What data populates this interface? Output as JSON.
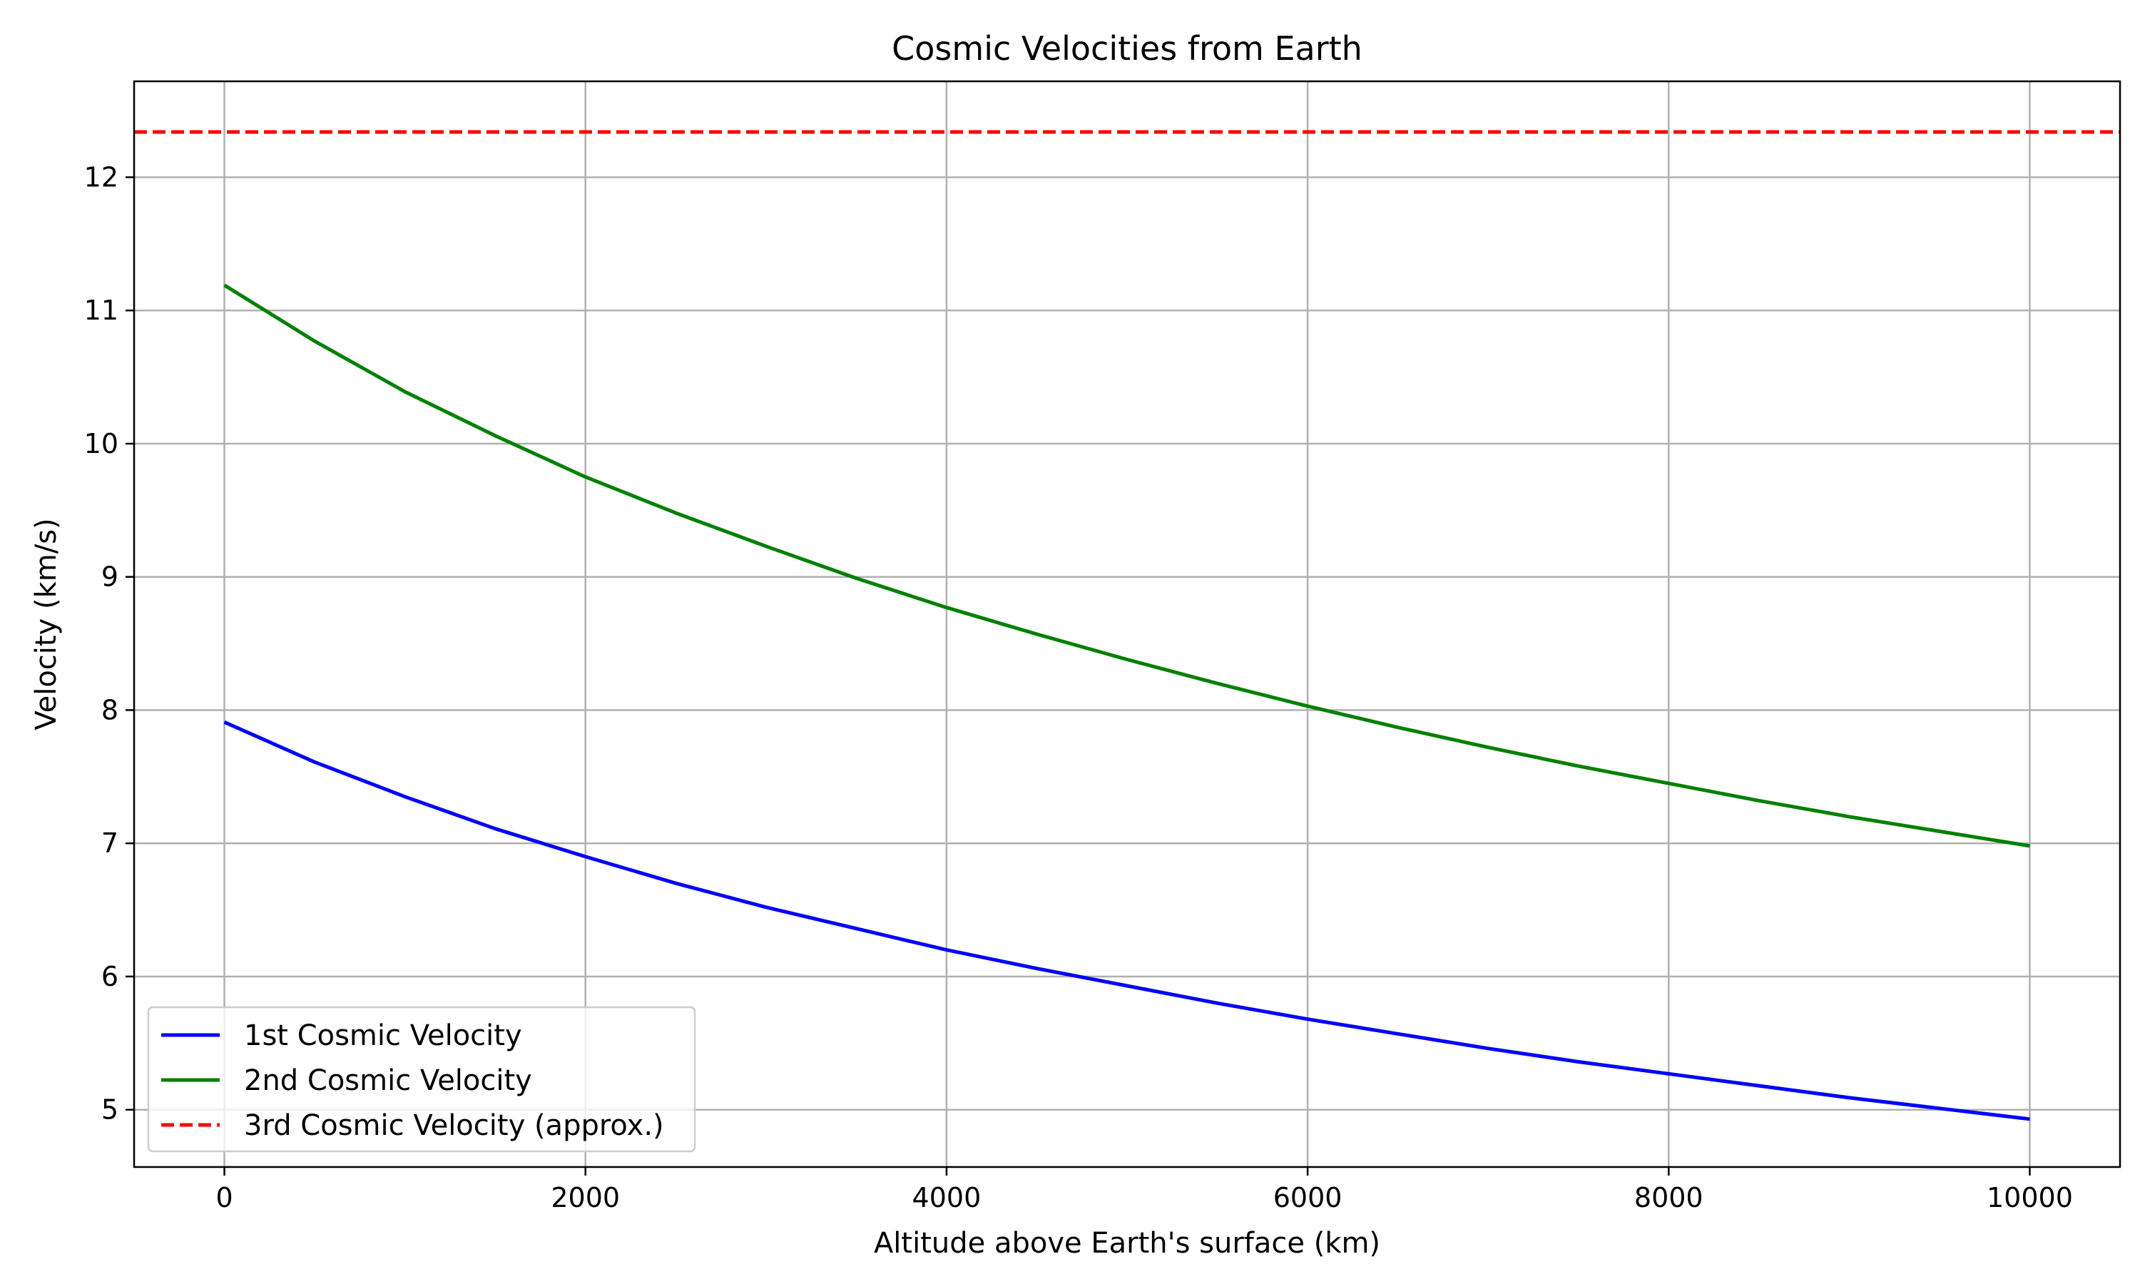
{
  "chart_data": {
    "type": "line",
    "title": "Cosmic Velocities from Earth",
    "xlabel": "Altitude above Earth's surface (km)",
    "ylabel": "Velocity (km/s)",
    "xlim": [
      -500,
      10500
    ],
    "ylim": [
      4.57,
      12.72
    ],
    "xticks": [
      0,
      2000,
      4000,
      6000,
      8000,
      10000
    ],
    "yticks": [
      5,
      6,
      7,
      8,
      9,
      10,
      11,
      12
    ],
    "grid": true,
    "legend_position": "bottom-left",
    "series": [
      {
        "name": "1st Cosmic Velocity",
        "color": "#0000ff",
        "style": "solid",
        "x": [
          0,
          500,
          1000,
          1500,
          2000,
          2500,
          3000,
          3500,
          4000,
          4500,
          5000,
          5500,
          6000,
          6500,
          7000,
          7500,
          8000,
          8500,
          9000,
          9500,
          10000
        ],
        "y": [
          7.91,
          7.61,
          7.35,
          7.11,
          6.9,
          6.7,
          6.52,
          6.36,
          6.2,
          6.06,
          5.93,
          5.8,
          5.68,
          5.57,
          5.46,
          5.36,
          5.27,
          5.18,
          5.09,
          5.01,
          4.93
        ]
      },
      {
        "name": "2nd Cosmic Velocity",
        "color": "#008000",
        "style": "solid",
        "x": [
          0,
          500,
          1000,
          1500,
          2000,
          2500,
          3000,
          3500,
          4000,
          4500,
          5000,
          5500,
          6000,
          6500,
          7000,
          7500,
          8000,
          8500,
          9000,
          9500,
          10000
        ],
        "y": [
          11.19,
          10.77,
          10.39,
          10.06,
          9.75,
          9.48,
          9.23,
          8.99,
          8.77,
          8.57,
          8.38,
          8.2,
          8.03,
          7.87,
          7.72,
          7.58,
          7.45,
          7.32,
          7.2,
          7.09,
          6.98
        ]
      },
      {
        "name": "3rd Cosmic Velocity (approx.)",
        "color": "#ff0000",
        "style": "dashed",
        "x": [
          -500,
          10500
        ],
        "y": [
          12.34,
          12.34
        ]
      }
    ]
  }
}
